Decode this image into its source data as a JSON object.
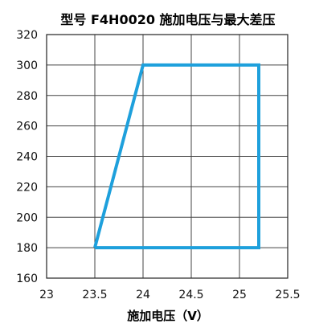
{
  "chart_data": {
    "type": "line",
    "title": "型号 F4H0020 施加电压与最大差压",
    "xlabel": "施加电压（V）",
    "ylabel": "",
    "xlim": [
      23,
      25.5
    ],
    "ylim": [
      160,
      320
    ],
    "xticks": [
      "23",
      "23.5",
      "24",
      "24.5",
      "25",
      "25.5"
    ],
    "yticks": [
      "160",
      "180",
      "200",
      "220",
      "240",
      "260",
      "280",
      "300",
      "320"
    ],
    "grid": true,
    "series": [
      {
        "color": "#1ea0dc",
        "points": [
          [
            23.5,
            180
          ],
          [
            24.0,
            300
          ],
          [
            25.2,
            300
          ],
          [
            25.2,
            180
          ],
          [
            23.5,
            180
          ]
        ]
      }
    ]
  }
}
